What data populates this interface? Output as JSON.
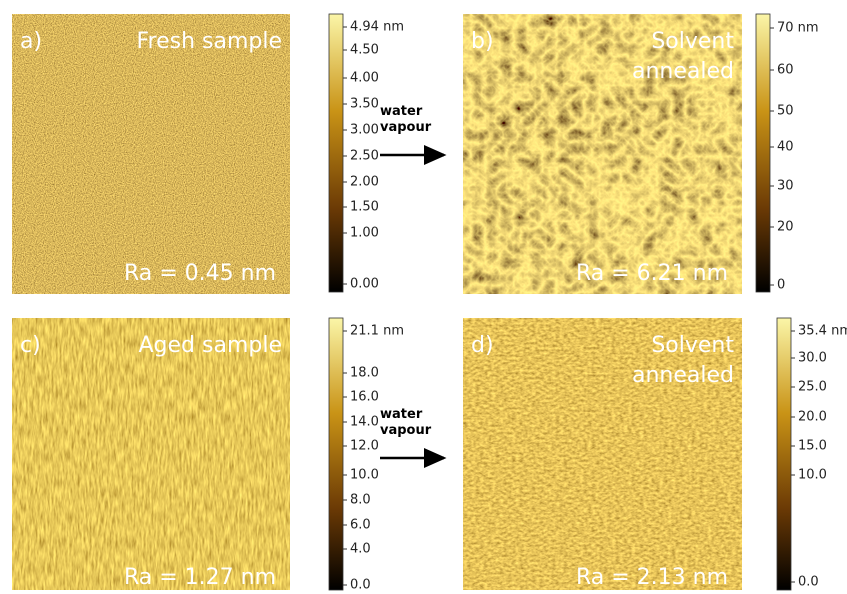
{
  "panels": [
    {
      "label": "a)",
      "title": [
        "Fresh sample"
      ],
      "roughness": "Ra = 0.45 nm",
      "scale": [
        "4.94 nm",
        "4.50",
        "4.00",
        "3.50",
        "3.00",
        "2.50",
        "2.00",
        "1.50",
        "1.00",
        "0.00"
      ]
    },
    {
      "label": "b)",
      "title": [
        "Solvent",
        "annealed"
      ],
      "roughness": "Ra = 6.21 nm",
      "scale": [
        "70 nm",
        "60",
        "50",
        "40",
        "30",
        "20",
        "0"
      ]
    },
    {
      "label": "c)",
      "title": [
        "Aged sample"
      ],
      "roughness": "Ra = 1.27 nm",
      "scale": [
        "21.1 nm",
        "18.0",
        "16.0",
        "14.0",
        "12.0",
        "10.0",
        "8.0",
        "6.0",
        "4.0",
        "0.0"
      ]
    },
    {
      "label": "d)",
      "title": [
        "Solvent",
        "annealed"
      ],
      "roughness": "Ra = 2.13 nm",
      "scale": [
        "35.4 nm",
        "30.0",
        "25.0",
        "20.0",
        "15.0",
        "10.0",
        "0.0"
      ]
    }
  ],
  "arrows": [
    {
      "lines": [
        "water",
        "vapour"
      ]
    },
    {
      "lines": [
        "water",
        "vapour"
      ]
    }
  ]
}
